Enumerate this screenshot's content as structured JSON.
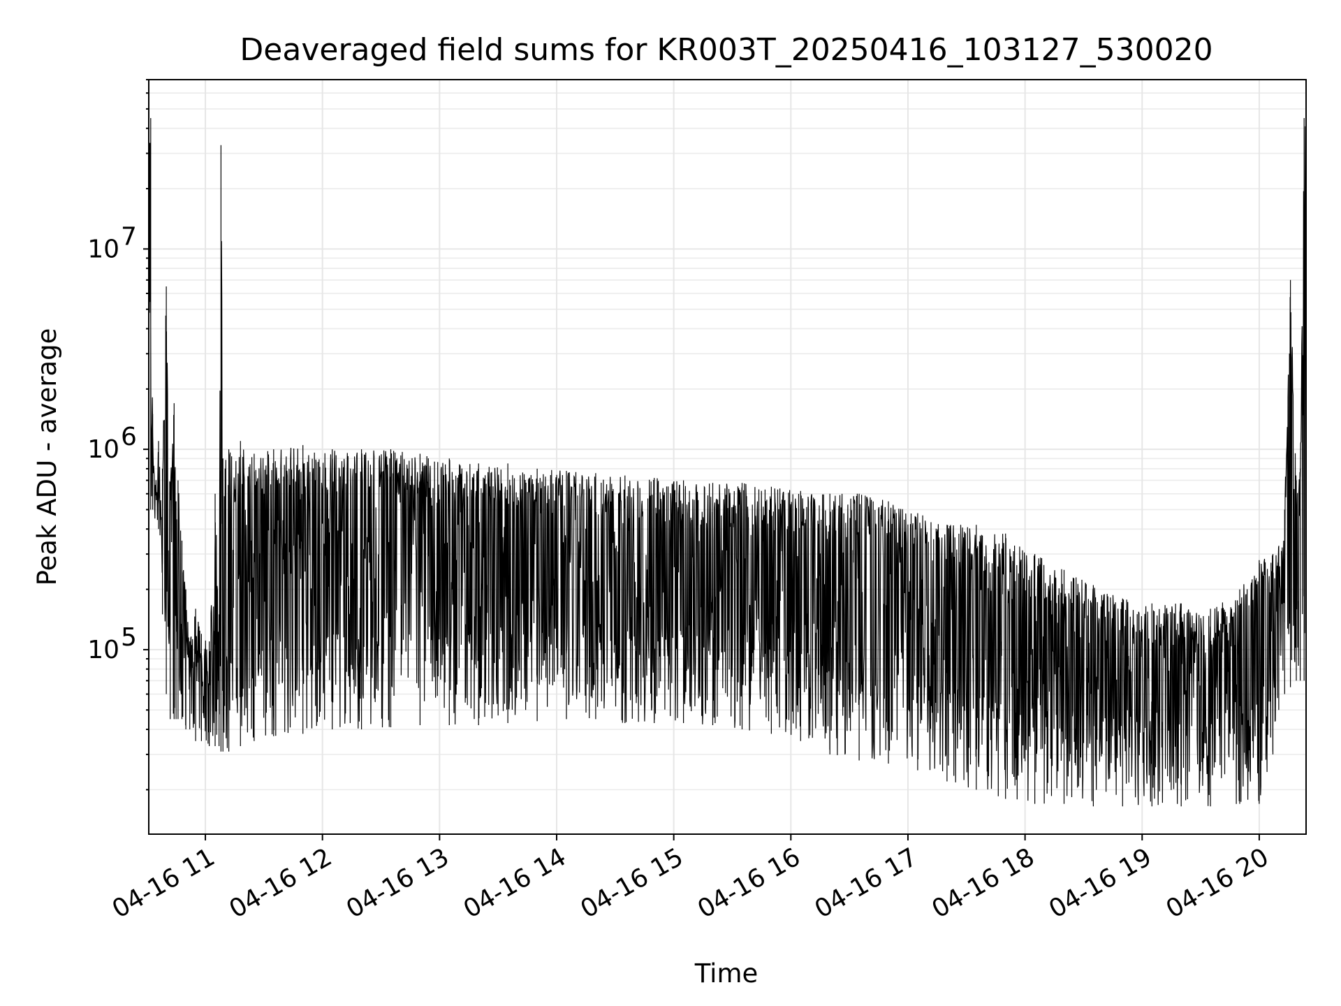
{
  "chart_data": {
    "type": "line",
    "title": "Deaveraged field sums for KR003T_20250416_103127_530020",
    "xlabel": "Time",
    "ylabel": "Peak ADU - average",
    "yscale": "log",
    "grid": "on (major and minor)",
    "legend": "none",
    "xlim": [
      "2025-04-16 10:31",
      "2025-04-16 20:24"
    ],
    "ylim": [
      12000,
      70000000
    ],
    "x_ticks": [
      {
        "label": "04-16 11",
        "value": "2025-04-16 11:00"
      },
      {
        "label": "04-16 12",
        "value": "2025-04-16 12:00"
      },
      {
        "label": "04-16 13",
        "value": "2025-04-16 13:00"
      },
      {
        "label": "04-16 14",
        "value": "2025-04-16 14:00"
      },
      {
        "label": "04-16 15",
        "value": "2025-04-16 15:00"
      },
      {
        "label": "04-16 16",
        "value": "2025-04-16 16:00"
      },
      {
        "label": "04-16 17",
        "value": "2025-04-16 17:00"
      },
      {
        "label": "04-16 18",
        "value": "2025-04-16 18:00"
      },
      {
        "label": "04-16 19",
        "value": "2025-04-16 19:00"
      },
      {
        "label": "04-16 20",
        "value": "2025-04-16 20:00"
      }
    ],
    "y_ticks": [
      {
        "label": "10",
        "exponent": "5",
        "value": 100000
      },
      {
        "label": "10",
        "exponent": "6",
        "value": 1000000
      },
      {
        "label": "10",
        "exponent": "7",
        "value": 10000000
      }
    ],
    "series": [
      {
        "color": "#000000",
        "x": [
          "2025-04-16 10:31",
          "2025-04-16 10:32",
          "2025-04-16 10:33",
          "2025-04-16 10:34",
          "2025-04-16 10:36",
          "2025-04-16 10:38",
          "2025-04-16 10:40",
          "2025-04-16 10:42",
          "2025-04-16 10:44",
          "2025-04-16 10:45",
          "2025-04-16 10:46",
          "2025-04-16 10:48",
          "2025-04-16 10:50",
          "2025-04-16 10:52",
          "2025-04-16 10:55",
          "2025-04-16 10:58",
          "2025-04-16 11:02",
          "2025-04-16 11:05",
          "2025-04-16 11:07",
          "2025-04-16 11:08",
          "2025-04-16 11:09",
          "2025-04-16 11:12",
          "2025-04-16 11:18",
          "2025-04-16 11:25",
          "2025-04-16 11:35",
          "2025-04-16 11:50",
          "2025-04-16 12:05",
          "2025-04-16 12:20",
          "2025-04-16 12:35",
          "2025-04-16 12:50",
          "2025-04-16 13:05",
          "2025-04-16 13:20",
          "2025-04-16 13:35",
          "2025-04-16 13:50",
          "2025-04-16 14:05",
          "2025-04-16 14:20",
          "2025-04-16 14:35",
          "2025-04-16 14:50",
          "2025-04-16 15:05",
          "2025-04-16 15:20",
          "2025-04-16 15:35",
          "2025-04-16 15:50",
          "2025-04-16 16:05",
          "2025-04-16 16:20",
          "2025-04-16 16:35",
          "2025-04-16 16:50",
          "2025-04-16 17:05",
          "2025-04-16 17:20",
          "2025-04-16 17:35",
          "2025-04-16 17:50",
          "2025-04-16 18:05",
          "2025-04-16 18:20",
          "2025-04-16 18:35",
          "2025-04-16 18:50",
          "2025-04-16 19:05",
          "2025-04-16 19:20",
          "2025-04-16 19:35",
          "2025-04-16 19:50",
          "2025-04-16 20:00",
          "2025-04-16 20:07",
          "2025-04-16 20:10",
          "2025-04-16 20:13",
          "2025-04-16 20:16",
          "2025-04-16 20:19",
          "2025-04-16 20:21",
          "2025-04-16 20:23",
          "2025-04-16 20:24"
        ],
        "y": [
          30000000,
          45000000,
          1500000,
          600000,
          1100000,
          800000,
          6500000,
          650000,
          1700000,
          550000,
          700000,
          350000,
          200000,
          110000,
          160000,
          120000,
          110000,
          600000,
          150000,
          33000000,
          900000,
          1000000,
          1100000,
          950000,
          1000000,
          1050000,
          1000000,
          1000000,
          1000000,
          950000,
          900000,
          850000,
          850000,
          800000,
          780000,
          760000,
          740000,
          720000,
          700000,
          680000,
          680000,
          650000,
          620000,
          600000,
          600000,
          550000,
          480000,
          420000,
          420000,
          380000,
          300000,
          250000,
          210000,
          180000,
          170000,
          170000,
          160000,
          200000,
          280000,
          300000,
          330000,
          500000,
          7000000,
          700000,
          800000,
          45000000,
          40000000
        ],
        "band_min": [
          500000,
          500000,
          500000,
          500000,
          400000,
          150000,
          60000,
          45000,
          45000,
          45000,
          45000,
          45000,
          40000,
          40000,
          35000,
          35000,
          33000,
          33000,
          33000,
          31000,
          31000,
          31000,
          33000,
          35000,
          37000,
          38000,
          40000,
          40000,
          41000,
          42000,
          42000,
          42000,
          43000,
          44000,
          45000,
          45000,
          43000,
          43000,
          43000,
          42000,
          40000,
          38000,
          35000,
          30000,
          28000,
          27000,
          25000,
          22000,
          20000,
          18000,
          17000,
          17000,
          16500,
          16500,
          16500,
          16500,
          16500,
          17000,
          17000,
          30000,
          50000,
          60000,
          65000,
          70000,
          70000,
          70000,
          70000
        ]
      }
    ]
  }
}
